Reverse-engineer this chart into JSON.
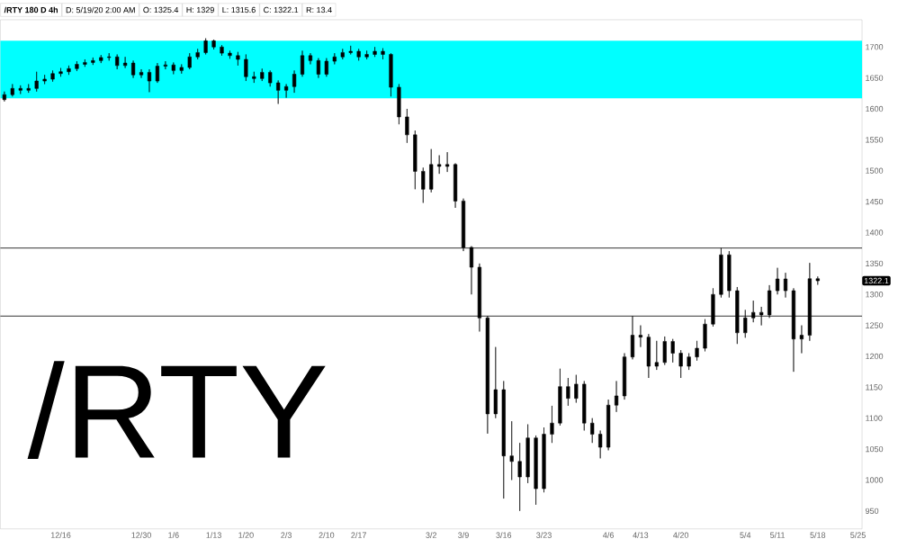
{
  "chart_data": {
    "type": "candlestick",
    "title": "/RTY 180 D 4h",
    "annotations": [
      "D: 5/19/20 2:00 AM",
      "O: 1325.4",
      "H: 1329",
      "L: 1315.6",
      "C: 1322.1",
      "R: 13.4",
      "/RTY",
      {
        "text": "1322.1",
        "y": 1322.1
      }
    ],
    "categories": [
      null,
      null,
      null,
      null,
      null,
      null,
      null,
      "12/16",
      null,
      null,
      null,
      null,
      null,
      null,
      null,
      null,
      null,
      "12/30",
      null,
      null,
      null,
      "1/6",
      null,
      null,
      null,
      null,
      "1/13",
      null,
      null,
      null,
      "1/20",
      null,
      null,
      null,
      null,
      "2/3",
      null,
      null,
      null,
      null,
      "2/10",
      null,
      null,
      null,
      "2/17",
      null,
      null,
      null,
      null,
      null,
      null,
      null,
      null,
      "3/2",
      null,
      null,
      null,
      "3/9",
      null,
      null,
      null,
      null,
      "3/16",
      null,
      null,
      null,
      null,
      "3/23",
      null,
      null,
      null,
      null,
      null,
      null,
      null,
      "4/6",
      null,
      null,
      null,
      "4/13",
      null,
      null,
      null,
      null,
      "4/20",
      null,
      null,
      null,
      null,
      null,
      null,
      null,
      "5/4",
      null,
      null,
      null,
      "5/11",
      null,
      null,
      null,
      null,
      "5/18",
      null,
      null,
      null,
      null,
      "5/25"
    ],
    "ohlc": [
      [
        1615,
        1628,
        1612,
        1623
      ],
      [
        1623,
        1640,
        1620,
        1633
      ],
      [
        1633,
        1638,
        1624,
        1630
      ],
      [
        1630,
        1640,
        1626,
        1633
      ],
      [
        1633,
        1660,
        1628,
        1645
      ],
      [
        1645,
        1655,
        1640,
        1648
      ],
      [
        1648,
        1662,
        1644,
        1657
      ],
      [
        1657,
        1666,
        1652,
        1660
      ],
      [
        1660,
        1670,
        1655,
        1665
      ],
      [
        1665,
        1677,
        1661,
        1672
      ],
      [
        1672,
        1680,
        1668,
        1675
      ],
      [
        1675,
        1683,
        1671,
        1678
      ],
      [
        1678,
        1687,
        1674,
        1683
      ],
      [
        1683,
        1690,
        1678,
        1684
      ],
      [
        1684,
        1688,
        1664,
        1670
      ],
      [
        1670,
        1684,
        1666,
        1674
      ],
      [
        1674,
        1678,
        1650,
        1655
      ],
      [
        1655,
        1664,
        1650,
        1659
      ],
      [
        1659,
        1664,
        1627,
        1645
      ],
      [
        1645,
        1674,
        1642,
        1669
      ],
      [
        1669,
        1677,
        1664,
        1671
      ],
      [
        1671,
        1675,
        1656,
        1662
      ],
      [
        1662,
        1672,
        1657,
        1667
      ],
      [
        1667,
        1690,
        1664,
        1684
      ],
      [
        1684,
        1697,
        1680,
        1691
      ],
      [
        1691,
        1714,
        1688,
        1710
      ],
      [
        1710,
        1712,
        1696,
        1700
      ],
      [
        1700,
        1703,
        1686,
        1690
      ],
      [
        1690,
        1694,
        1681,
        1686
      ],
      [
        1686,
        1692,
        1670,
        1680
      ],
      [
        1680,
        1688,
        1645,
        1652
      ],
      [
        1652,
        1660,
        1642,
        1649
      ],
      [
        1649,
        1665,
        1645,
        1659
      ],
      [
        1659,
        1662,
        1636,
        1642
      ],
      [
        1642,
        1646,
        1608,
        1630
      ],
      [
        1630,
        1640,
        1618,
        1636
      ],
      [
        1636,
        1662,
        1626,
        1656
      ],
      [
        1656,
        1694,
        1652,
        1686
      ],
      [
        1686,
        1690,
        1672,
        1678
      ],
      [
        1678,
        1682,
        1650,
        1656
      ],
      [
        1656,
        1682,
        1652,
        1677
      ],
      [
        1677,
        1690,
        1672,
        1684
      ],
      [
        1684,
        1697,
        1680,
        1691
      ],
      [
        1691,
        1702,
        1688,
        1693
      ],
      [
        1693,
        1697,
        1678,
        1684
      ],
      [
        1684,
        1694,
        1680,
        1688
      ],
      [
        1688,
        1700,
        1684,
        1693
      ],
      [
        1693,
        1698,
        1680,
        1688
      ],
      [
        1688,
        1690,
        1620,
        1635
      ],
      [
        1635,
        1640,
        1575,
        1587
      ],
      [
        1587,
        1600,
        1545,
        1558
      ],
      [
        1558,
        1565,
        1470,
        1499
      ],
      [
        1499,
        1505,
        1448,
        1470
      ],
      [
        1470,
        1535,
        1465,
        1510
      ],
      [
        1510,
        1525,
        1495,
        1507
      ],
      [
        1507,
        1530,
        1498,
        1510
      ],
      [
        1510,
        1512,
        1440,
        1451
      ],
      [
        1451,
        1455,
        1370,
        1376
      ],
      [
        1376,
        1378,
        1300,
        1344
      ],
      [
        1344,
        1350,
        1240,
        1262
      ],
      [
        1262,
        1265,
        1075,
        1107
      ],
      [
        1107,
        1215,
        1100,
        1146
      ],
      [
        1146,
        1160,
        970,
        1039
      ],
      [
        1039,
        1095,
        1000,
        1030
      ],
      [
        1030,
        1060,
        950,
        1005
      ],
      [
        1005,
        1090,
        995,
        1068
      ],
      [
        1068,
        1072,
        960,
        986
      ],
      [
        986,
        1085,
        980,
        1074
      ],
      [
        1074,
        1120,
        1060,
        1092
      ],
      [
        1092,
        1180,
        1088,
        1151
      ],
      [
        1151,
        1165,
        1120,
        1132
      ],
      [
        1132,
        1170,
        1125,
        1155
      ],
      [
        1155,
        1160,
        1080,
        1092
      ],
      [
        1092,
        1100,
        1060,
        1074
      ],
      [
        1074,
        1080,
        1035,
        1053
      ],
      [
        1053,
        1130,
        1048,
        1121
      ],
      [
        1121,
        1160,
        1110,
        1136
      ],
      [
        1136,
        1205,
        1130,
        1199
      ],
      [
        1199,
        1265,
        1195,
        1234
      ],
      [
        1234,
        1250,
        1215,
        1231
      ],
      [
        1231,
        1236,
        1165,
        1184
      ],
      [
        1184,
        1225,
        1178,
        1190
      ],
      [
        1190,
        1232,
        1186,
        1224
      ],
      [
        1224,
        1228,
        1190,
        1205
      ],
      [
        1205,
        1210,
        1165,
        1184
      ],
      [
        1184,
        1205,
        1178,
        1199
      ],
      [
        1199,
        1225,
        1193,
        1213
      ],
      [
        1213,
        1260,
        1208,
        1252
      ],
      [
        1252,
        1310,
        1248,
        1300
      ],
      [
        1300,
        1375,
        1295,
        1364
      ],
      [
        1364,
        1370,
        1295,
        1306
      ],
      [
        1306,
        1312,
        1220,
        1238
      ],
      [
        1238,
        1275,
        1230,
        1262
      ],
      [
        1262,
        1290,
        1255,
        1271
      ],
      [
        1271,
        1280,
        1250,
        1267
      ],
      [
        1267,
        1315,
        1262,
        1306
      ],
      [
        1306,
        1343,
        1300,
        1325
      ],
      [
        1325,
        1335,
        1295,
        1306
      ],
      [
        1306,
        1310,
        1175,
        1228
      ],
      [
        1228,
        1250,
        1205,
        1234
      ],
      [
        1234,
        1351,
        1225,
        1325.4
      ],
      [
        1325.4,
        1329,
        1315.6,
        1322.1
      ],
      null,
      null,
      null,
      null,
      null
    ],
    "color": "#000000",
    "ylim": [
      921,
      1744
    ],
    "yticks": [
      950,
      1000,
      1050,
      1100,
      1150,
      1200,
      1250,
      1300,
      1350,
      1400,
      1450,
      1500,
      1550,
      1600,
      1650,
      1700
    ],
    "ref_lines": [
      {
        "axis": "y",
        "value": 1375,
        "color": "#000000"
      },
      {
        "axis": "y",
        "value": 1265,
        "color": "#000000"
      }
    ],
    "bands": [
      {
        "axis": "y",
        "from": 1617,
        "to": 1710,
        "color": "#00ffff"
      }
    ]
  }
}
